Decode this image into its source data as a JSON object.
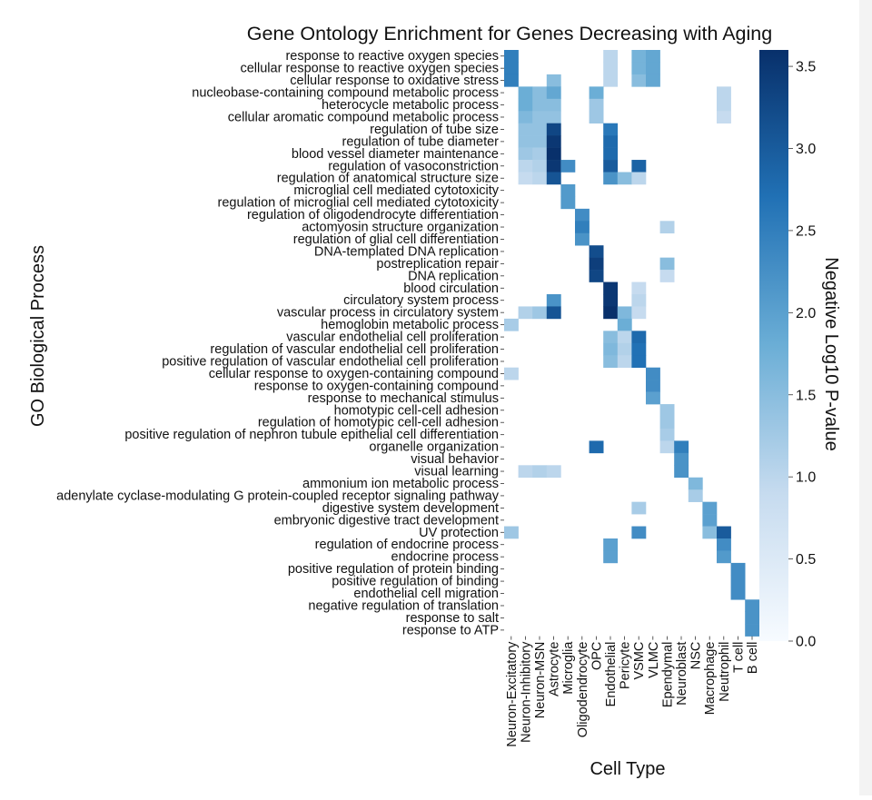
{
  "chart_data": {
    "type": "heatmap",
    "title": "Gene Ontology Enrichment for Genes Decreasing with Aging",
    "xlabel": "Cell Type",
    "ylabel": "GO Biological Process",
    "colorbar_label": "Negative Log10 P-value",
    "colorbar_ticks": [
      "3.5",
      "3.0",
      "2.5",
      "2.0",
      "1.5",
      "1.0",
      "0.5",
      "0.0"
    ],
    "vmin": 0,
    "vmax": 3.6,
    "colormap": [
      "#f7fbff",
      "#c6dbef",
      "#6baed6",
      "#2171b5",
      "#08306b"
    ],
    "columns": [
      "Neuron-Excitatory",
      "Neuron-Inhibitory",
      "Neuron-MSN",
      "Astrocyte",
      "Microglia",
      "Oligodendrocyte",
      "OPC",
      "Endothelial",
      "Pericyte",
      "VSMC",
      "VLMC",
      "Ependymal",
      "Neuroblast",
      "NSC",
      "Macrophage",
      "Neutrophil",
      "T cell",
      "B cell"
    ],
    "rows": [
      "response to reactive oxygen species",
      "cellular response to reactive oxygen species",
      "cellular response to oxidative stress",
      "nucleobase-containing compound metabolic process",
      "heterocycle metabolic process",
      "cellular aromatic compound metabolic process",
      "regulation of tube size",
      "regulation of tube diameter",
      "blood vessel diameter maintenance",
      "regulation of vasoconstriction",
      "regulation of anatomical structure size",
      "microglial cell mediated cytotoxicity",
      "regulation of microglial cell mediated cytotoxicity",
      "regulation of oligodendrocyte differentiation",
      "actomyosin structure organization",
      "regulation of glial cell differentiation",
      "DNA-templated DNA replication",
      "postreplication repair",
      "DNA replication",
      "blood circulation",
      "circulatory system process",
      "vascular process in circulatory system",
      "hemoglobin metabolic process",
      "vascular endothelial cell proliferation",
      "regulation of vascular endothelial cell proliferation",
      "positive regulation of vascular endothelial cell proliferation",
      "cellular response to oxygen-containing compound",
      "response to oxygen-containing compound",
      "response to mechanical stimulus",
      "homotypic cell-cell adhesion",
      "regulation of homotypic cell-cell adhesion",
      "positive regulation of nephron tubule epithelial cell differentiation",
      "organelle organization",
      "visual behavior",
      "visual learning",
      "ammonium ion metabolic process",
      "adenylate cyclase-modulating G protein-coupled receptor signaling pathway",
      "digestive system development",
      "embryonic digestive tract development",
      "UV protection",
      "regulation of endocrine process",
      "endocrine process",
      "positive regulation of protein binding",
      "positive regulation of binding",
      "endothelial cell migration",
      "negative regulation of translation",
      "response to salt",
      "response to ATP"
    ],
    "values": [
      [
        2.5,
        0,
        0,
        0,
        0,
        0,
        0,
        1.0,
        0,
        1.7,
        1.9,
        0,
        0,
        0,
        0,
        0,
        0,
        0
      ],
      [
        2.5,
        0,
        0,
        0,
        0,
        0,
        0,
        1.0,
        0,
        1.7,
        1.9,
        0,
        0,
        0,
        0,
        0,
        0,
        0
      ],
      [
        2.5,
        0,
        0,
        1.5,
        0,
        0,
        0,
        1.0,
        0,
        1.5,
        1.9,
        0,
        0,
        0,
        0,
        0,
        0,
        0
      ],
      [
        0,
        1.8,
        1.5,
        1.9,
        0,
        0,
        1.8,
        0,
        0,
        0,
        0,
        0,
        0,
        0,
        0,
        1.0,
        0,
        0
      ],
      [
        0,
        1.8,
        1.5,
        1.5,
        0,
        0,
        1.3,
        0,
        0,
        0,
        0,
        0,
        0,
        0,
        0,
        1.0,
        0,
        0
      ],
      [
        0,
        1.6,
        1.4,
        1.4,
        0,
        0,
        1.3,
        0,
        0,
        0,
        0,
        0,
        0,
        0,
        0,
        0.9,
        0,
        0
      ],
      [
        0,
        1.4,
        1.4,
        3.3,
        0,
        0,
        0,
        2.6,
        0,
        0,
        0,
        0,
        0,
        0,
        0,
        0,
        0,
        0
      ],
      [
        0,
        1.4,
        1.4,
        3.5,
        0,
        0,
        0,
        2.8,
        0,
        0,
        0,
        0,
        0,
        0,
        0,
        0,
        0,
        0
      ],
      [
        0,
        1.3,
        1.2,
        3.6,
        0,
        0,
        0,
        2.8,
        0,
        0,
        0,
        0,
        0,
        0,
        0,
        0,
        0,
        0
      ],
      [
        0,
        1.0,
        1.1,
        3.5,
        2.3,
        0,
        0,
        3.0,
        0,
        2.9,
        0,
        0,
        0,
        0,
        0,
        0,
        0,
        0
      ],
      [
        0,
        0.9,
        1.0,
        3.1,
        0,
        0,
        0,
        2.2,
        1.5,
        1.0,
        0,
        0,
        0,
        0,
        0,
        0,
        0,
        0
      ],
      [
        0,
        0,
        0,
        0,
        2.1,
        0,
        0,
        0,
        0,
        0,
        0,
        0,
        0,
        0,
        0,
        0,
        0,
        0
      ],
      [
        0,
        0,
        0,
        0,
        2.1,
        0,
        0,
        0,
        0,
        0,
        0,
        0,
        0,
        0,
        0,
        0,
        0,
        0
      ],
      [
        0,
        0,
        0,
        0,
        0,
        2.3,
        0,
        0,
        0,
        0,
        0,
        0,
        0,
        0,
        0,
        0,
        0,
        0
      ],
      [
        0,
        0,
        0,
        0,
        0,
        2.5,
        0,
        0,
        0,
        0,
        0,
        1.1,
        0,
        0,
        0,
        0,
        0,
        0
      ],
      [
        0,
        0,
        0,
        0,
        0,
        2.2,
        0,
        0,
        0,
        0,
        0,
        0,
        0,
        0,
        0,
        0,
        0,
        0
      ],
      [
        0,
        0,
        0,
        0,
        0,
        0,
        3.2,
        0,
        0,
        0,
        0,
        0,
        0,
        0,
        0,
        0,
        0,
        0
      ],
      [
        0,
        0,
        0,
        0,
        0,
        0,
        3.4,
        0,
        0,
        0,
        0,
        1.5,
        0,
        0,
        0,
        0,
        0,
        0
      ],
      [
        0,
        0,
        0,
        0,
        0,
        0,
        3.3,
        0,
        0,
        0,
        0,
        0.9,
        0,
        0,
        0,
        0,
        0,
        0
      ],
      [
        0,
        0,
        0,
        0,
        0,
        0,
        0,
        3.5,
        0,
        0.9,
        0,
        0,
        0,
        0,
        0,
        0,
        0,
        0
      ],
      [
        0,
        0,
        0,
        2.2,
        0,
        0,
        0,
        3.5,
        0,
        1.0,
        0,
        0,
        0,
        0,
        0,
        0,
        0,
        0
      ],
      [
        0,
        1.1,
        1.3,
        3.1,
        0,
        0,
        0,
        3.6,
        1.6,
        0.9,
        0,
        0,
        0,
        0,
        0,
        0,
        0,
        0
      ],
      [
        1.2,
        0,
        0,
        0,
        0,
        0,
        0,
        0,
        1.8,
        0,
        0,
        0,
        0,
        0,
        0,
        0,
        0,
        0
      ],
      [
        0,
        0,
        0,
        0,
        0,
        0,
        0,
        1.5,
        1.0,
        2.8,
        0,
        0,
        0,
        0,
        0,
        0,
        0,
        0
      ],
      [
        0,
        0,
        0,
        0,
        0,
        0,
        0,
        1.6,
        1.1,
        2.7,
        0,
        0,
        0,
        0,
        0,
        0,
        0,
        0
      ],
      [
        0,
        0,
        0,
        0,
        0,
        0,
        0,
        1.5,
        1.0,
        2.7,
        0,
        0,
        0,
        0,
        0,
        0,
        0,
        0
      ],
      [
        1.0,
        0,
        0,
        0,
        0,
        0,
        0,
        0,
        0,
        0,
        2.3,
        0,
        0,
        0,
        0,
        0,
        0,
        0
      ],
      [
        0,
        0,
        0,
        0,
        0,
        0,
        0,
        0,
        0,
        0,
        2.3,
        0,
        0,
        0,
        0,
        0,
        0,
        0
      ],
      [
        0,
        0,
        0,
        0,
        0,
        0,
        0,
        0,
        0,
        0,
        2.0,
        0,
        0,
        0,
        0,
        0,
        0,
        0
      ],
      [
        0,
        0,
        0,
        0,
        0,
        0,
        0,
        0,
        0,
        0,
        0,
        1.3,
        0,
        0,
        0,
        0,
        0,
        0
      ],
      [
        0,
        0,
        0,
        0,
        0,
        0,
        0,
        0,
        0,
        0,
        0,
        1.3,
        0,
        0,
        0,
        0,
        0,
        0
      ],
      [
        0,
        0,
        0,
        0,
        0,
        0,
        0,
        0,
        0,
        0,
        0,
        1.2,
        0,
        0,
        0,
        0,
        0,
        0
      ],
      [
        0,
        0,
        0,
        0,
        0,
        0,
        2.8,
        0,
        0,
        0,
        0,
        1.0,
        2.5,
        0,
        0,
        0,
        0,
        0
      ],
      [
        0,
        0,
        0,
        0,
        0,
        0,
        0,
        0,
        0,
        0,
        0,
        0,
        2.2,
        0,
        0,
        0,
        0,
        0
      ],
      [
        0,
        1.0,
        1.1,
        1.0,
        0,
        0,
        0,
        0,
        0,
        0,
        0,
        0,
        2.2,
        0,
        0,
        0,
        0,
        0
      ],
      [
        0,
        0,
        0,
        0,
        0,
        0,
        0,
        0,
        0,
        0,
        0,
        0,
        0,
        1.6,
        0,
        0,
        0,
        0
      ],
      [
        0,
        0,
        0,
        0,
        0,
        0,
        0,
        0,
        0,
        0,
        0,
        0,
        0,
        1.2,
        0,
        0,
        0,
        0
      ],
      [
        0,
        0,
        0,
        0,
        0,
        0,
        0,
        0,
        0,
        1.2,
        0,
        0,
        0,
        0,
        2.0,
        0,
        0,
        0
      ],
      [
        0,
        0,
        0,
        0,
        0,
        0,
        0,
        0,
        0,
        0,
        0,
        0,
        0,
        0,
        2.0,
        0,
        0,
        0
      ],
      [
        1.3,
        0,
        0,
        0,
        0,
        0,
        0,
        0,
        0,
        2.3,
        0,
        0,
        0,
        0,
        1.5,
        3.0,
        0,
        0
      ],
      [
        0,
        0,
        0,
        0,
        0,
        0,
        0,
        2.0,
        0,
        0,
        0,
        0,
        0,
        0,
        0,
        2.3,
        0,
        0
      ],
      [
        0,
        0,
        0,
        0,
        0,
        0,
        0,
        2.0,
        0,
        0,
        0,
        0,
        0,
        0,
        0,
        2.1,
        0,
        0
      ],
      [
        0,
        0,
        0,
        0,
        0,
        0,
        0,
        0,
        0,
        0,
        0,
        0,
        0,
        0,
        0,
        0,
        2.3,
        0
      ],
      [
        0,
        0,
        0,
        0,
        0,
        0,
        0,
        0,
        0,
        0,
        0,
        0,
        0,
        0,
        0,
        0,
        2.3,
        0
      ],
      [
        0,
        0,
        0,
        0,
        0,
        0,
        0,
        0,
        0,
        0,
        0,
        0,
        0,
        0,
        0,
        0,
        2.3,
        0
      ],
      [
        0,
        0,
        0,
        0,
        0,
        0,
        0,
        0,
        0,
        0,
        0,
        0,
        0,
        0,
        0,
        0,
        0,
        2.2
      ],
      [
        0,
        0,
        0,
        0,
        0,
        0,
        0,
        0,
        0,
        0,
        0,
        0,
        0,
        0,
        0,
        0,
        0,
        2.2
      ],
      [
        0,
        0,
        0,
        0,
        0,
        0,
        0,
        0,
        0,
        0,
        0,
        0,
        0,
        0,
        0,
        0,
        0,
        2.2
      ]
    ]
  }
}
